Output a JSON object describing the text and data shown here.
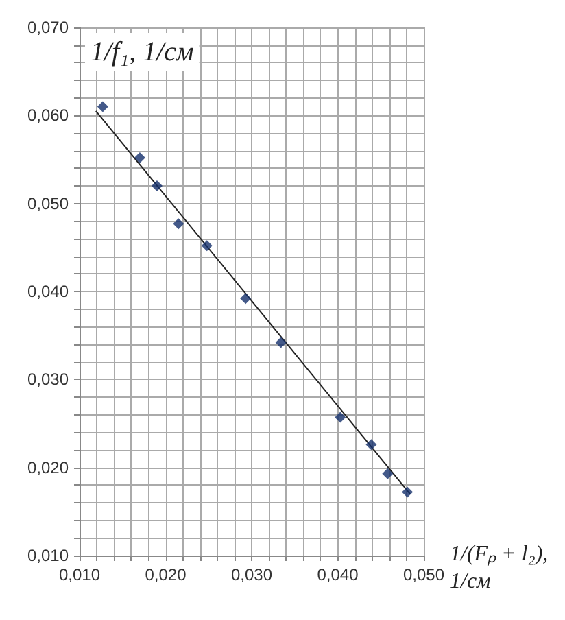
{
  "chart_data": {
    "type": "scatter",
    "xlabel": "1/(Fₚ + l₂), 1/см",
    "ylabel": "1/f₁, 1/см",
    "series": [
      {
        "color": "#14306b",
        "marker": "diamond",
        "x": [
          0.0127,
          0.017,
          0.019,
          0.0215,
          0.0248,
          0.0293,
          0.0334,
          0.0403,
          0.0439,
          0.0458,
          0.0481
        ],
        "values": [
          0.061,
          0.0552,
          0.052,
          0.0477,
          0.0452,
          0.0392,
          0.0342,
          0.0257,
          0.0226,
          0.0193,
          0.0172
        ]
      },
      {
        "type": "line",
        "color": "#222222",
        "marker": "none",
        "line_style": "solid",
        "x": [
          0.0119,
          0.0484
        ],
        "values": [
          0.0605,
          0.017
        ]
      }
    ],
    "xlim": [
      0.01,
      0.05
    ],
    "xticks": [
      {
        "value": 0.01,
        "label": "0,010"
      },
      {
        "value": 0.012,
        "label": null
      },
      {
        "value": 0.014,
        "label": null
      },
      {
        "value": 0.016,
        "label": null
      },
      {
        "value": 0.018,
        "label": null
      },
      {
        "value": 0.02,
        "label": "0,020"
      },
      {
        "value": 0.022,
        "label": null
      },
      {
        "value": 0.024,
        "label": null
      },
      {
        "value": 0.026,
        "label": null
      },
      {
        "value": 0.028,
        "label": null
      },
      {
        "value": 0.03,
        "label": "0,030"
      },
      {
        "value": 0.032,
        "label": null
      },
      {
        "value": 0.034,
        "label": null
      },
      {
        "value": 0.036,
        "label": null
      },
      {
        "value": 0.038,
        "label": null
      },
      {
        "value": 0.04,
        "label": "0,040"
      },
      {
        "value": 0.042,
        "label": null
      },
      {
        "value": 0.044,
        "label": null
      },
      {
        "value": 0.046,
        "label": null
      },
      {
        "value": 0.048,
        "label": null
      },
      {
        "value": 0.05,
        "label": "0,050"
      }
    ],
    "ylim": [
      0.01,
      0.07
    ],
    "yticks": [
      {
        "value": 0.01,
        "label": "0,010"
      },
      {
        "value": 0.012,
        "label": null
      },
      {
        "value": 0.014,
        "label": null
      },
      {
        "value": 0.016,
        "label": null
      },
      {
        "value": 0.018,
        "label": null
      },
      {
        "value": 0.02,
        "label": "0,020"
      },
      {
        "value": 0.022,
        "label": null
      },
      {
        "value": 0.024,
        "label": null
      },
      {
        "value": 0.026,
        "label": null
      },
      {
        "value": 0.028,
        "label": null
      },
      {
        "value": 0.03,
        "label": "0,030"
      },
      {
        "value": 0.032,
        "label": null
      },
      {
        "value": 0.034,
        "label": null
      },
      {
        "value": 0.036,
        "label": null
      },
      {
        "value": 0.038,
        "label": null
      },
      {
        "value": 0.04,
        "label": "0,040"
      },
      {
        "value": 0.042,
        "label": null
      },
      {
        "value": 0.044,
        "label": null
      },
      {
        "value": 0.046,
        "label": null
      },
      {
        "value": 0.048,
        "label": null
      },
      {
        "value": 0.05,
        "label": "0,050"
      },
      {
        "value": 0.052,
        "label": null
      },
      {
        "value": 0.054,
        "label": null
      },
      {
        "value": 0.056,
        "label": null
      },
      {
        "value": 0.058,
        "label": null
      },
      {
        "value": 0.06,
        "label": "0,060"
      },
      {
        "value": 0.062,
        "label": null
      },
      {
        "value": 0.064,
        "label": null
      },
      {
        "value": 0.066,
        "label": null
      },
      {
        "value": 0.068,
        "label": null
      },
      {
        "value": 0.07,
        "label": "0,070"
      }
    ],
    "grid": true
  }
}
